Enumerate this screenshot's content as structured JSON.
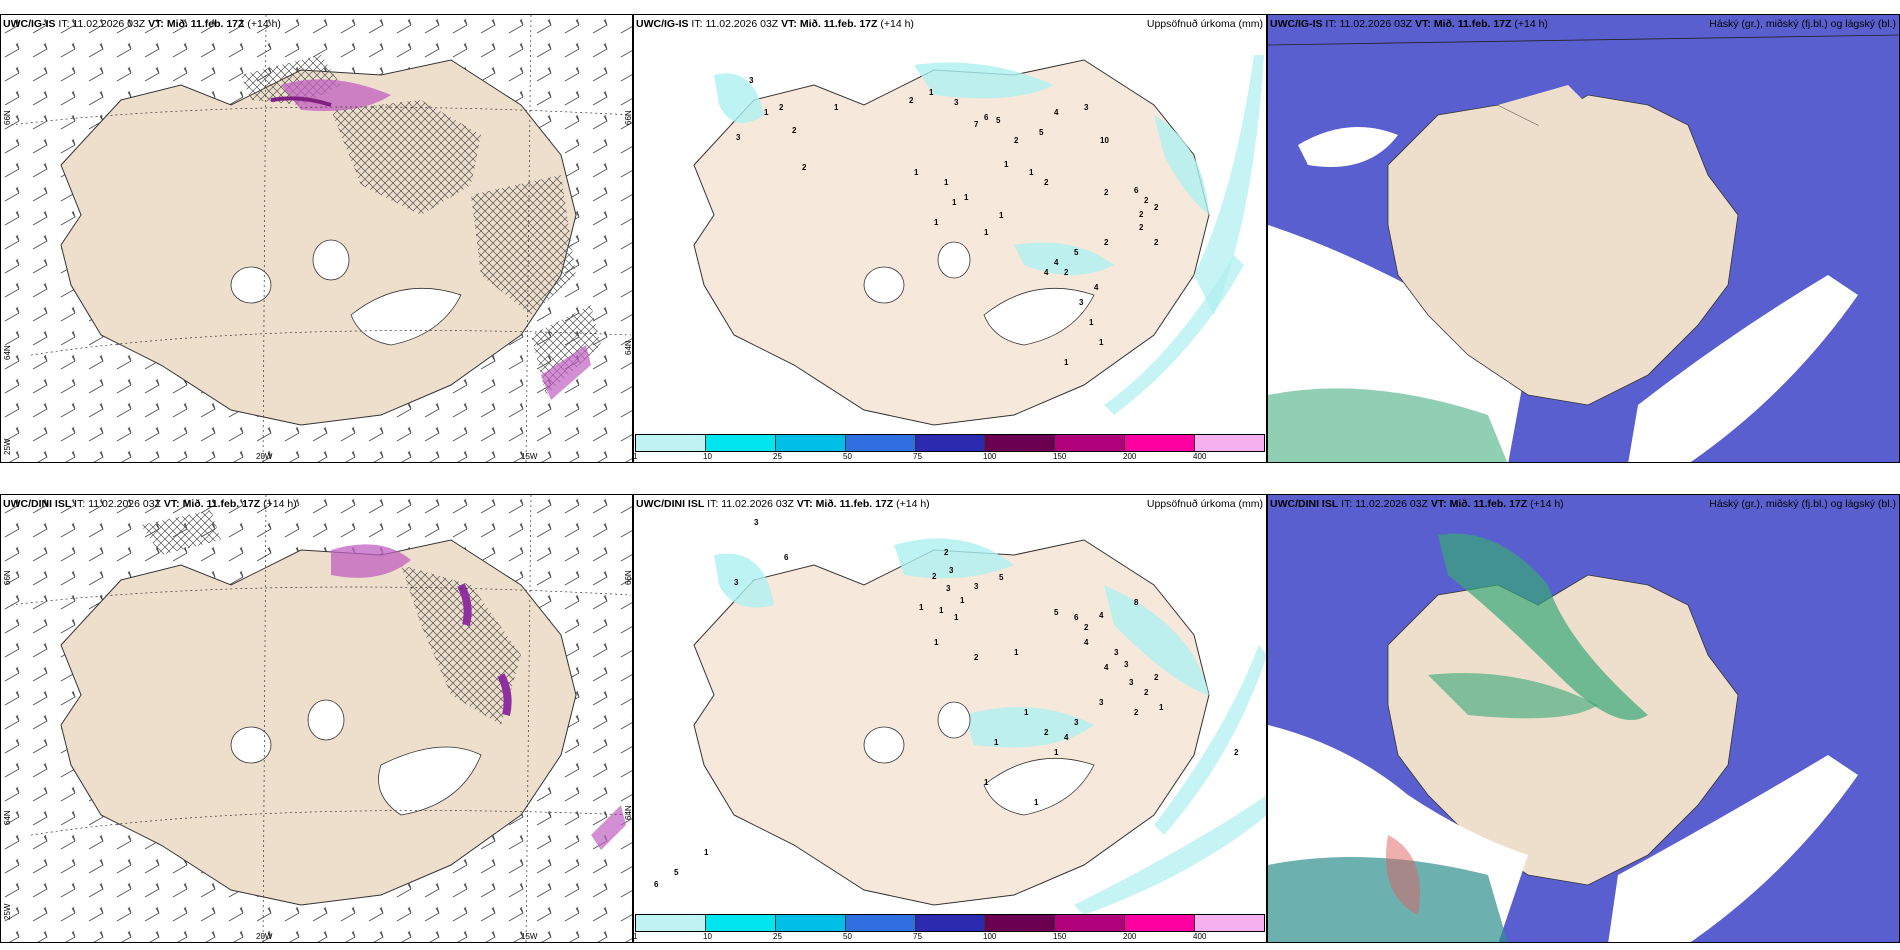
{
  "rows": [
    {
      "model": "UWC/IG-IS",
      "it_label": "IT:",
      "it_value": "11.02.2026 03Z",
      "vt_label": "VT:",
      "vt_value": "Mið. 11.feb. 17Z",
      "lead": "(+14 h)",
      "precip_title": "Uppsöfnuð úrkoma (mm)",
      "cloud_title": "Háský (gr.), miðský (fj.bl.) og lágský (bl.)",
      "precip_numbers": [
        "3",
        "1",
        "2",
        "3",
        "2",
        "2",
        "1",
        "2",
        "1",
        "3",
        "7",
        "6",
        "5",
        "2",
        "5",
        "4",
        "3",
        "10",
        "1",
        "1",
        "1",
        "1",
        "1",
        "1",
        "1",
        "1",
        "1",
        "2",
        "2",
        "6",
        "2",
        "2",
        "2",
        "2",
        "2",
        "2",
        "5",
        "4",
        "4",
        "2",
        "4",
        "3",
        "1",
        "1",
        "1"
      ]
    },
    {
      "model": "UWC/DINI ISL",
      "it_label": "IT:",
      "it_value": "11.02.2026 03Z",
      "vt_label": "VT:",
      "vt_value": "Mið. 11.feb. 17Z",
      "lead": "(+14 h)",
      "precip_title": "Uppsöfnuð úrkoma (mm)",
      "cloud_title": "Háský (gr.), miðský (fj.bl.) og lágský (bl.)",
      "precip_numbers": [
        "3",
        "6",
        "3",
        "2",
        "3",
        "2",
        "3",
        "3",
        "1",
        "5",
        "1",
        "1",
        "1",
        "1",
        "2",
        "1",
        "5",
        "6",
        "4",
        "2",
        "4",
        "8",
        "3",
        "4",
        "3",
        "3",
        "2",
        "2",
        "1",
        "2",
        "3",
        "3",
        "4",
        "1",
        "2",
        "1",
        "1",
        "1",
        "1",
        "5",
        "1",
        "6",
        "2"
      ]
    }
  ],
  "axis_labels": {
    "lat_66": "66N",
    "lat_64": "64N",
    "lon_20": "20W",
    "lon_15": "15W",
    "lon_25": "25W",
    "lat_66_right": "66N",
    "lat_64_right": "64N"
  },
  "colorbar": {
    "ticks": [
      "1",
      "10",
      "25",
      "50",
      "75",
      "100",
      "150",
      "200",
      "400"
    ],
    "colors": [
      "#bff3f3",
      "#00e5ee",
      "#00bfe6",
      "#2f6fe0",
      "#2b2bb0",
      "#6b0050",
      "#b0007a",
      "#ff00a0",
      "#f6b0f0"
    ]
  },
  "colors": {
    "land": "#eedfcc",
    "sea_light": "#ffffff",
    "precip_light": "#aef0f0",
    "cloud_high": "#37a878",
    "cloud_mid": "#4a4fc6",
    "cloud_low": "#ffffff"
  }
}
